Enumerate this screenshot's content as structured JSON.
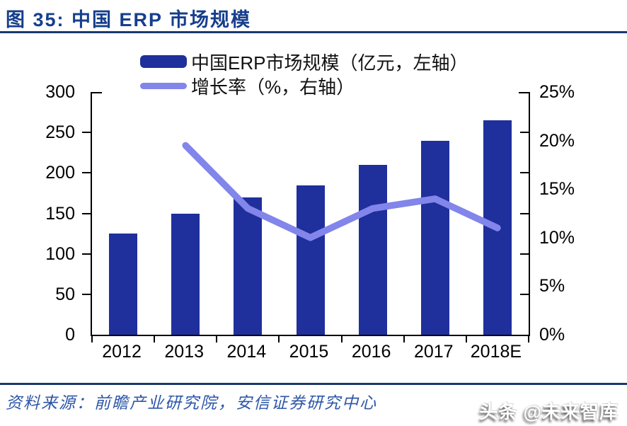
{
  "header": {
    "title": "图 35: 中国 ERP 市场规模"
  },
  "chart_data": {
    "type": "bar",
    "categories": [
      "2012",
      "2013",
      "2014",
      "2015",
      "2016",
      "2017",
      "2018E"
    ],
    "series": [
      {
        "name": "中国ERP市场规模（亿元，左轴）",
        "type": "bar",
        "axis": "left",
        "color": "#1f2f9c",
        "values": [
          125,
          150,
          170,
          185,
          210,
          240,
          265
        ]
      },
      {
        "name": "增长率（%，右轴）",
        "type": "line",
        "axis": "right",
        "color": "#8285ea",
        "values": [
          null,
          19.5,
          13,
          10,
          13,
          14,
          11
        ]
      }
    ],
    "title": "中国 ERP 市场规模",
    "xlabel": "",
    "ylabel_left": "亿元",
    "ylabel_right": "%",
    "left_axis": {
      "min": 0,
      "max": 300,
      "ticks": [
        "300",
        "250",
        "200",
        "150",
        "100",
        "50",
        "0"
      ]
    },
    "right_axis": {
      "min": 0,
      "max": 25,
      "ticks": [
        "25%",
        "20%",
        "15%",
        "10%",
        "5%",
        "0%"
      ]
    },
    "grid": false,
    "legend_position": "top"
  },
  "footer": {
    "source": "资料来源：前瞻产业研究院，安信证券研究中心",
    "watermark": "头条 @未来智库"
  }
}
